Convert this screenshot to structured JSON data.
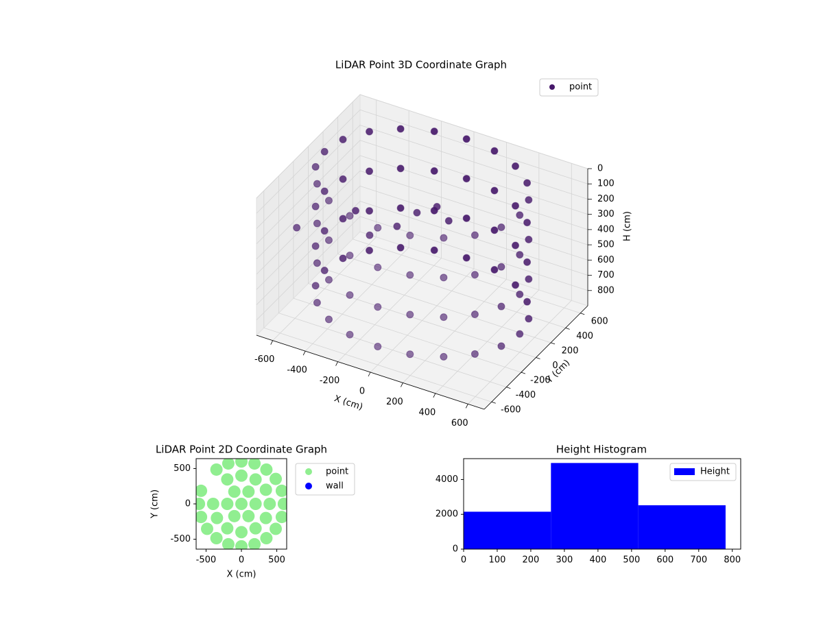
{
  "chart_data": [
    {
      "type": "scatter3d",
      "title": "LiDAR Point 3D Coordinate Graph",
      "xlabel": "X (cm)",
      "ylabel": "Y (cm)",
      "zlabel": "H (cm)",
      "xlim": [
        -700,
        700
      ],
      "ylim": [
        -700,
        700
      ],
      "zlim": [
        0,
        900
      ],
      "zinverted": true,
      "xticks": [
        -600,
        -400,
        -200,
        0,
        200,
        400,
        600
      ],
      "yticks": [
        -600,
        -400,
        -200,
        0,
        200,
        400,
        600
      ],
      "zticks": [
        0,
        100,
        200,
        300,
        400,
        500,
        600,
        700,
        800
      ],
      "legend": "upper right",
      "series": [
        {
          "name": "point",
          "color": "#46186a",
          "x": [
            600,
            571,
            485,
            353,
            185,
            0,
            -185,
            -353,
            -485,
            -571,
            -600,
            -571,
            -485,
            -353,
            -185,
            0,
            185,
            353,
            485,
            571,
            600,
            571,
            485,
            353,
            185,
            0,
            -185,
            -353,
            -485,
            -571,
            -600,
            -571,
            -485,
            -353,
            -185,
            0,
            185,
            353,
            485,
            571,
            600,
            571,
            485,
            353,
            185,
            0,
            -185,
            -353,
            -485,
            -571,
            -600,
            -571,
            -485,
            -353,
            -185,
            0,
            185,
            353,
            485,
            571,
            600,
            571,
            485,
            353,
            185,
            0,
            -185,
            -353,
            -485,
            -571,
            -600,
            -571,
            -485,
            -353,
            -185,
            0,
            185,
            353,
            485,
            571,
            -200,
            -100,
            0,
            50,
            -300,
            -500,
            -680
          ],
          "y": [
            0,
            185,
            353,
            485,
            571,
            600,
            571,
            485,
            353,
            185,
            0,
            -185,
            -353,
            -485,
            -571,
            -600,
            -571,
            -485,
            -353,
            -185,
            0,
            185,
            353,
            485,
            571,
            600,
            571,
            485,
            353,
            185,
            0,
            -185,
            -353,
            -485,
            -571,
            -600,
            -571,
            -485,
            -353,
            -185,
            0,
            185,
            353,
            485,
            571,
            600,
            571,
            485,
            353,
            185,
            0,
            -185,
            -353,
            -485,
            -571,
            -600,
            -571,
            -485,
            -353,
            -185,
            0,
            185,
            353,
            485,
            571,
            600,
            571,
            485,
            353,
            185,
            0,
            -185,
            -353,
            -485,
            -571,
            -600,
            -571,
            -485,
            -353,
            -185,
            100,
            150,
            200,
            250,
            -50,
            200,
            -200
          ],
          "z": [
            0,
            0,
            0,
            0,
            0,
            0,
            0,
            0,
            0,
            0,
            0,
            0,
            0,
            0,
            0,
            0,
            0,
            0,
            0,
            0,
            260,
            260,
            260,
            260,
            260,
            260,
            260,
            260,
            260,
            260,
            260,
            260,
            260,
            260,
            260,
            260,
            260,
            260,
            260,
            260,
            520,
            520,
            520,
            520,
            520,
            520,
            520,
            520,
            520,
            520,
            520,
            520,
            520,
            520,
            520,
            520,
            520,
            520,
            520,
            520,
            780,
            780,
            780,
            780,
            780,
            780,
            780,
            780,
            780,
            780,
            780,
            780,
            780,
            780,
            780,
            780,
            780,
            780,
            780,
            780,
            400,
            300,
            250,
            350,
            420,
            450,
            430
          ]
        }
      ]
    },
    {
      "type": "scatter",
      "title": "LiDAR Point 2D Coordinate Graph",
      "xlabel": "X (cm)",
      "ylabel": "Y (cm)",
      "xlim": [
        -640,
        640
      ],
      "ylim": [
        -640,
        640
      ],
      "xticks": [
        -500,
        0,
        500
      ],
      "yticks": [
        -500,
        0,
        500
      ],
      "legend": "outside right",
      "series": [
        {
          "name": "point",
          "color": "#90ee90",
          "x": [
            600,
            571,
            485,
            353,
            185,
            0,
            -185,
            -353,
            -571,
            -600,
            -571,
            -485,
            -353,
            -185,
            0,
            185,
            353,
            485,
            571,
            400,
            346,
            200,
            0,
            -200,
            -400,
            -346,
            -200,
            0,
            200,
            346,
            200,
            100,
            -100,
            -200,
            -100,
            100,
            0
          ],
          "y": [
            0,
            185,
            353,
            485,
            571,
            600,
            571,
            485,
            185,
            0,
            -185,
            -353,
            -485,
            -571,
            -600,
            -571,
            -485,
            -353,
            -185,
            0,
            200,
            346,
            400,
            346,
            0,
            -200,
            -346,
            -400,
            -346,
            -200,
            0,
            173,
            173,
            0,
            -173,
            -173,
            0
          ]
        },
        {
          "name": "wall",
          "color": "#0000ff",
          "x": [],
          "y": []
        }
      ]
    },
    {
      "type": "histogram",
      "title": "Height Histogram",
      "name": "Height",
      "color": "#0000ff",
      "bins": [
        0,
        260,
        520,
        780
      ],
      "counts": [
        2150,
        4950,
        2520
      ],
      "xlim": [
        0,
        825
      ],
      "ylim": [
        0,
        5200
      ],
      "xticks": [
        0,
        100,
        200,
        300,
        400,
        500,
        600,
        700,
        800
      ],
      "yticks": [
        0,
        2000,
        4000
      ],
      "legend": "upper right"
    }
  ]
}
